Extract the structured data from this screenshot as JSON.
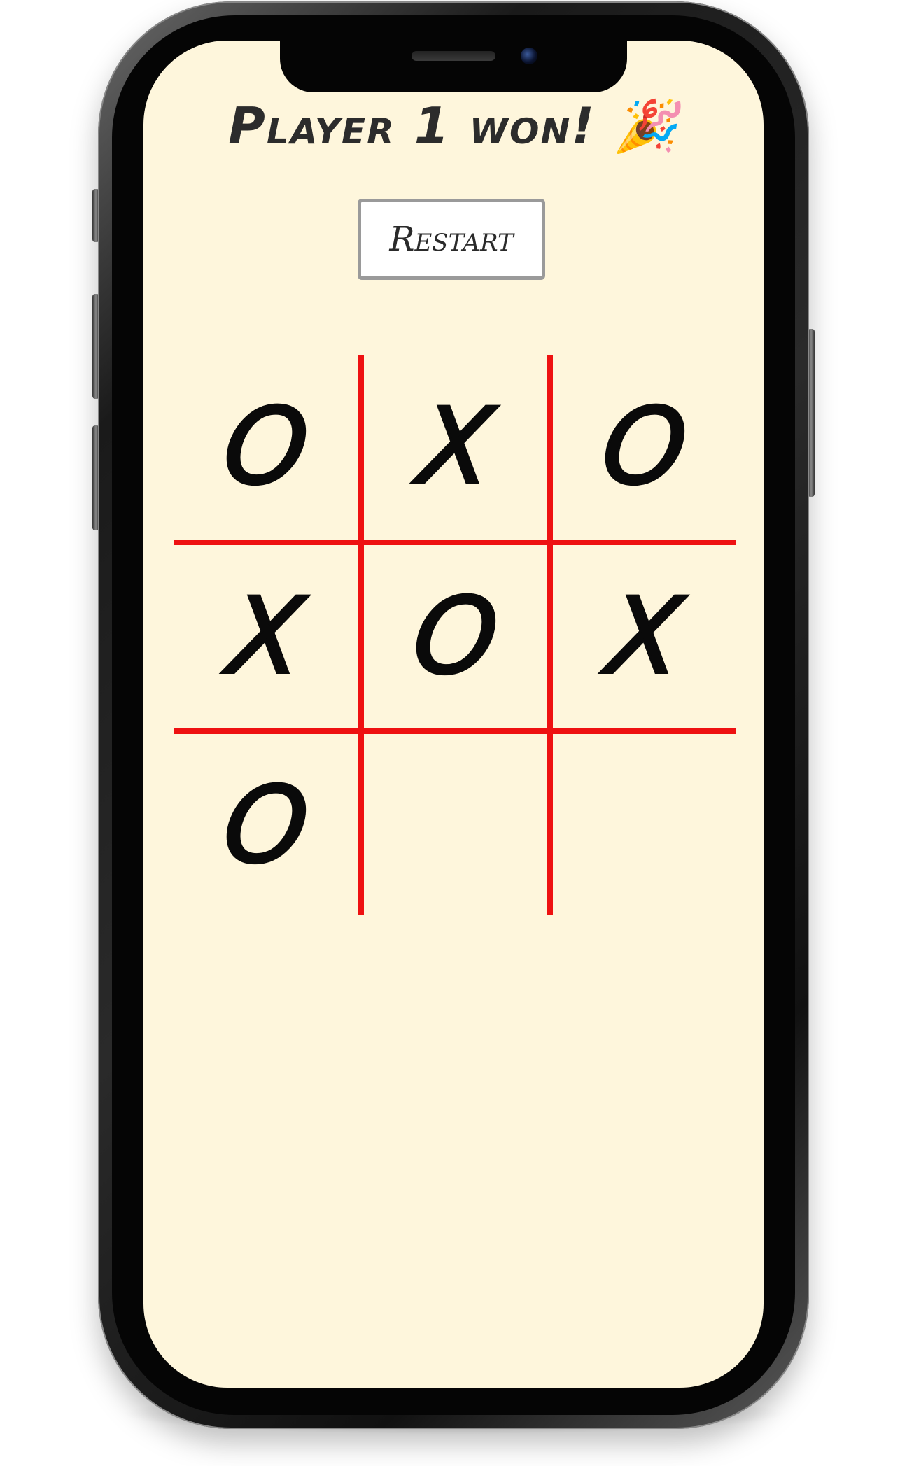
{
  "game": {
    "status_text": "Player 1 won! 🎉",
    "restart_label": "Restart"
  },
  "board": {
    "cells": [
      "O",
      "X",
      "O",
      "X",
      "O",
      "X",
      "O",
      "",
      ""
    ]
  },
  "colors": {
    "background": "#fef6dc",
    "grid_line": "#ee1111",
    "mark": "#0a0a0a"
  }
}
